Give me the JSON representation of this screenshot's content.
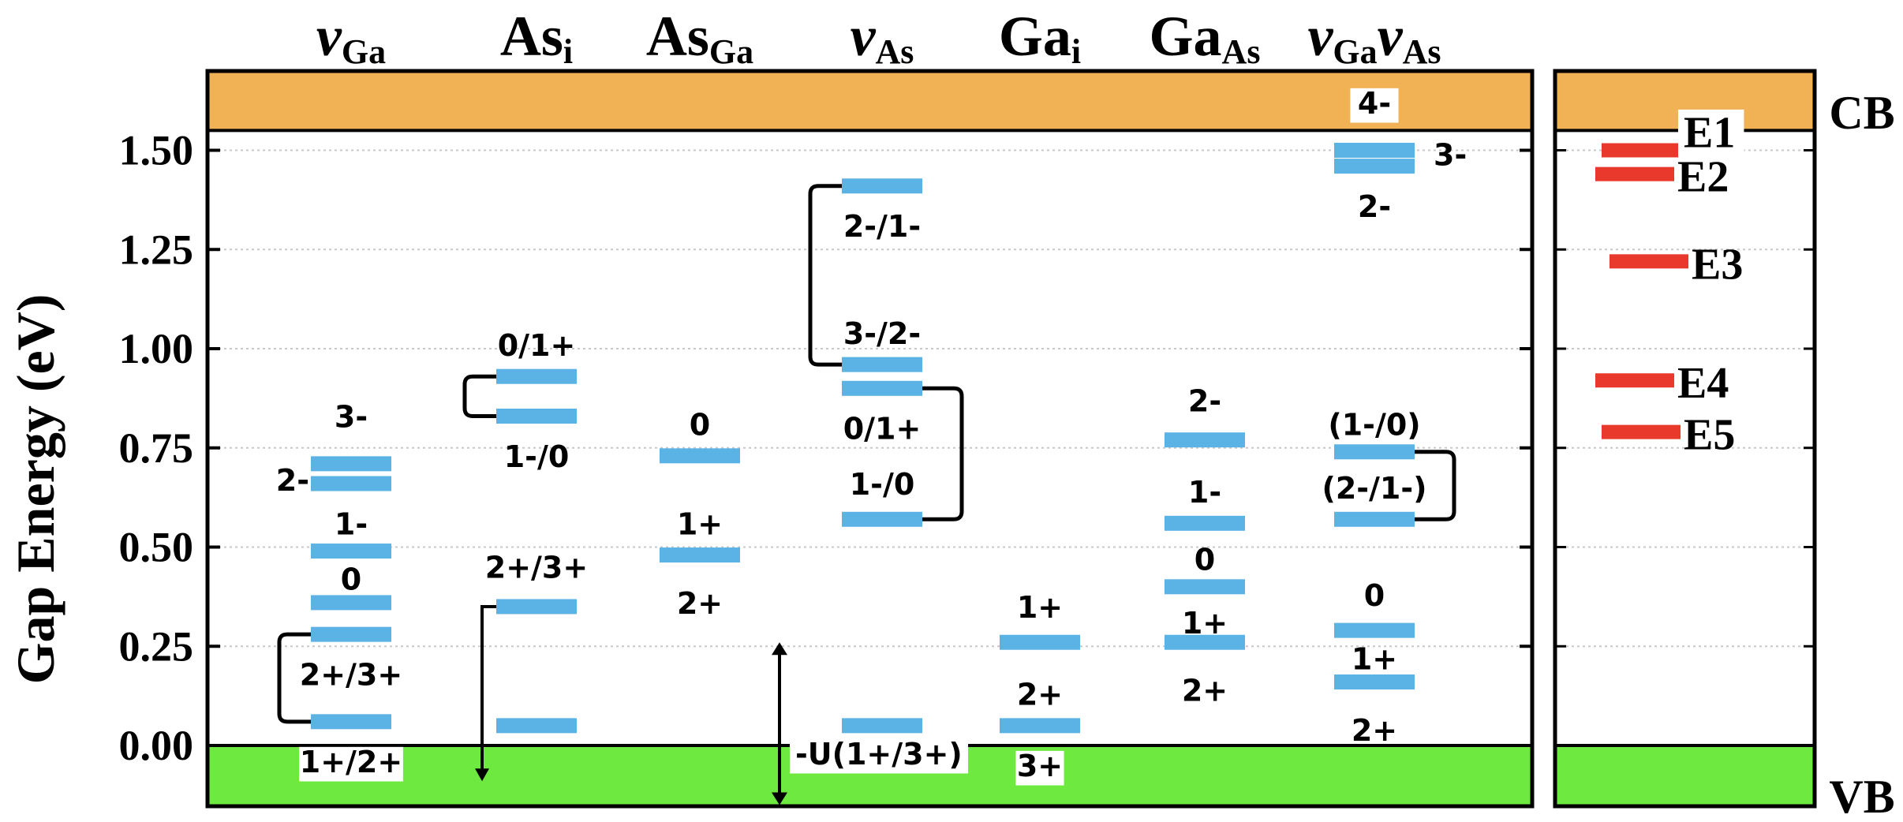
{
  "chart_data": {
    "type": "defect-level-diagram",
    "ylabel": "Gap Energy (eV)",
    "ylim": [
      -0.15,
      1.72
    ],
    "yticks": [
      "0.00",
      "0.25",
      "0.50",
      "0.75",
      "1.00",
      "1.25",
      "1.50"
    ],
    "band_gap_eV": 1.55,
    "bands": {
      "conduction": "CB",
      "valence": "VB"
    },
    "colors": {
      "cb": "#f1b155",
      "vb": "#6de940",
      "level": "#5bb2e5",
      "trap": "#e8392c"
    },
    "columns": [
      {
        "name": "v",
        "sub": "Ga",
        "italic": true,
        "levels": [
          0.71,
          0.66,
          0.49,
          0.36,
          0.28,
          0.06
        ],
        "labels": [
          {
            "text": "3-",
            "y": 0.83
          },
          {
            "text": "2-",
            "y": 0.67,
            "side": "left"
          },
          {
            "text": "1-",
            "y": 0.56
          },
          {
            "text": "0",
            "y": 0.42
          },
          {
            "text": "2+/3+",
            "y": 0.18
          },
          {
            "text": "1+/2+",
            "y": -0.04
          }
        ],
        "brackets": [
          {
            "y1": 0.28,
            "y2": 0.06
          }
        ]
      },
      {
        "name": "As",
        "sub": "i",
        "italic": false,
        "levels": [
          0.93,
          0.83,
          0.35,
          0.05
        ],
        "labels": [
          {
            "text": "0/1+",
            "y": 1.01
          },
          {
            "text": "1-/0",
            "y": 0.73
          },
          {
            "text": "2+/3+",
            "y": 0.45
          }
        ],
        "brackets": [
          {
            "y1": 0.93,
            "y2": 0.83
          }
        ],
        "arrows": [
          {
            "from": 0.35,
            "to": -0.09
          }
        ]
      },
      {
        "name": "As",
        "sub": "Ga",
        "italic": false,
        "levels": [
          0.73,
          0.48
        ],
        "labels": [
          {
            "text": "0",
            "y": 0.81
          },
          {
            "text": "1+",
            "y": 0.56
          },
          {
            "text": "2+",
            "y": 0.36
          }
        ]
      },
      {
        "name": "v",
        "sub": "As",
        "italic": true,
        "levels": [
          1.41,
          0.96,
          0.9,
          0.57,
          0.05
        ],
        "labels": [
          {
            "text": "2-/1-",
            "y": 1.31
          },
          {
            "text": "3-/2-",
            "y": 1.04
          },
          {
            "text": "0/1+",
            "y": 0.8
          },
          {
            "text": "1-/0",
            "y": 0.66
          },
          {
            "text": "-U(1+/3+)",
            "y": -0.02,
            "boxed": true
          }
        ],
        "brackets": [
          {
            "y1": 1.41,
            "y2": 0.96
          },
          {
            "y1": 0.9,
            "y2": 0.57
          }
        ],
        "double_arrow": {
          "from": 0.26,
          "to": -0.15
        }
      },
      {
        "name": "Ga",
        "sub": "i",
        "italic": false,
        "levels": [
          0.26,
          0.05
        ],
        "labels": [
          {
            "text": "1+",
            "y": 0.35
          },
          {
            "text": "2+",
            "y": 0.13
          },
          {
            "text": "3+",
            "y": -0.05
          }
        ]
      },
      {
        "name": "Ga",
        "sub": "As",
        "italic": false,
        "levels": [
          0.77,
          0.56,
          0.4,
          0.26
        ],
        "labels": [
          {
            "text": "2-",
            "y": 0.87
          },
          {
            "text": "1-",
            "y": 0.64
          },
          {
            "text": "0",
            "y": 0.47
          },
          {
            "text": "1+",
            "y": 0.31
          },
          {
            "text": "2+",
            "y": 0.14
          }
        ]
      },
      {
        "name": "v",
        "sub": "Ga",
        "name2": "v",
        "sub2": "As",
        "italic": true,
        "levels": [
          1.5,
          1.46,
          0.74,
          0.57,
          0.29,
          0.16
        ],
        "labels": [
          {
            "text": "4-",
            "y": 1.62
          },
          {
            "text": "3-",
            "y": 1.49,
            "side": "right"
          },
          {
            "text": "2-",
            "y": 1.36
          },
          {
            "text": "(1-/0)",
            "y": 0.81
          },
          {
            "text": "(2-/1-)",
            "y": 0.65
          },
          {
            "text": "0",
            "y": 0.38
          },
          {
            "text": "1+",
            "y": 0.22
          },
          {
            "text": "2+",
            "y": 0.04
          }
        ],
        "brackets": [
          {
            "y1": 0.74,
            "y2": 0.57,
            "side": "right"
          }
        ]
      }
    ],
    "traps": [
      {
        "name": "E1",
        "y": 1.5
      },
      {
        "name": "E2",
        "y": 1.44
      },
      {
        "name": "E3",
        "y": 1.22
      },
      {
        "name": "E4",
        "y": 0.92
      },
      {
        "name": "E5",
        "y": 0.79
      }
    ]
  }
}
